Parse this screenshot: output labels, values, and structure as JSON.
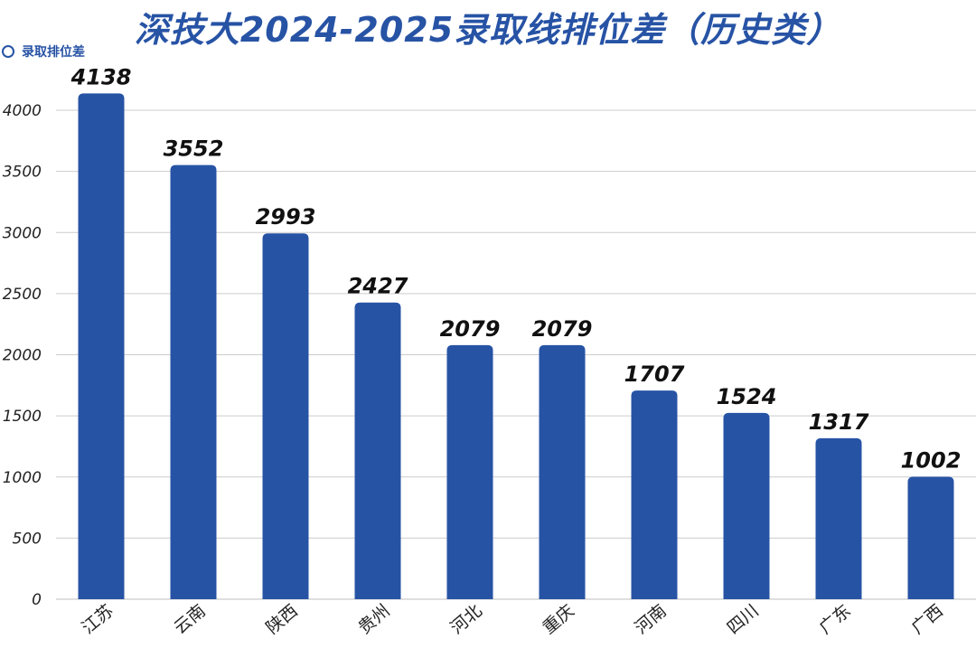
{
  "chart_data": {
    "type": "bar",
    "title": "深技大2024-2025录取线排位差（历史类）",
    "legend": [
      "录取排位差"
    ],
    "categories": [
      "江苏",
      "云南",
      "陕西",
      "贵州",
      "河北",
      "重庆",
      "河南",
      "四川",
      "广东",
      "广西"
    ],
    "series": [
      {
        "name": "录取排位差",
        "values": [
          4138,
          3552,
          2993,
          2427,
          2079,
          2079,
          1707,
          1524,
          1317,
          1002
        ]
      }
    ],
    "ylim": [
      0,
      4000
    ],
    "yticks": [
      0,
      500,
      1000,
      1500,
      2000,
      2500,
      3000,
      3500,
      4000
    ],
    "grid": true,
    "legend_position": "top-left",
    "bar_color": "#2753A5"
  }
}
